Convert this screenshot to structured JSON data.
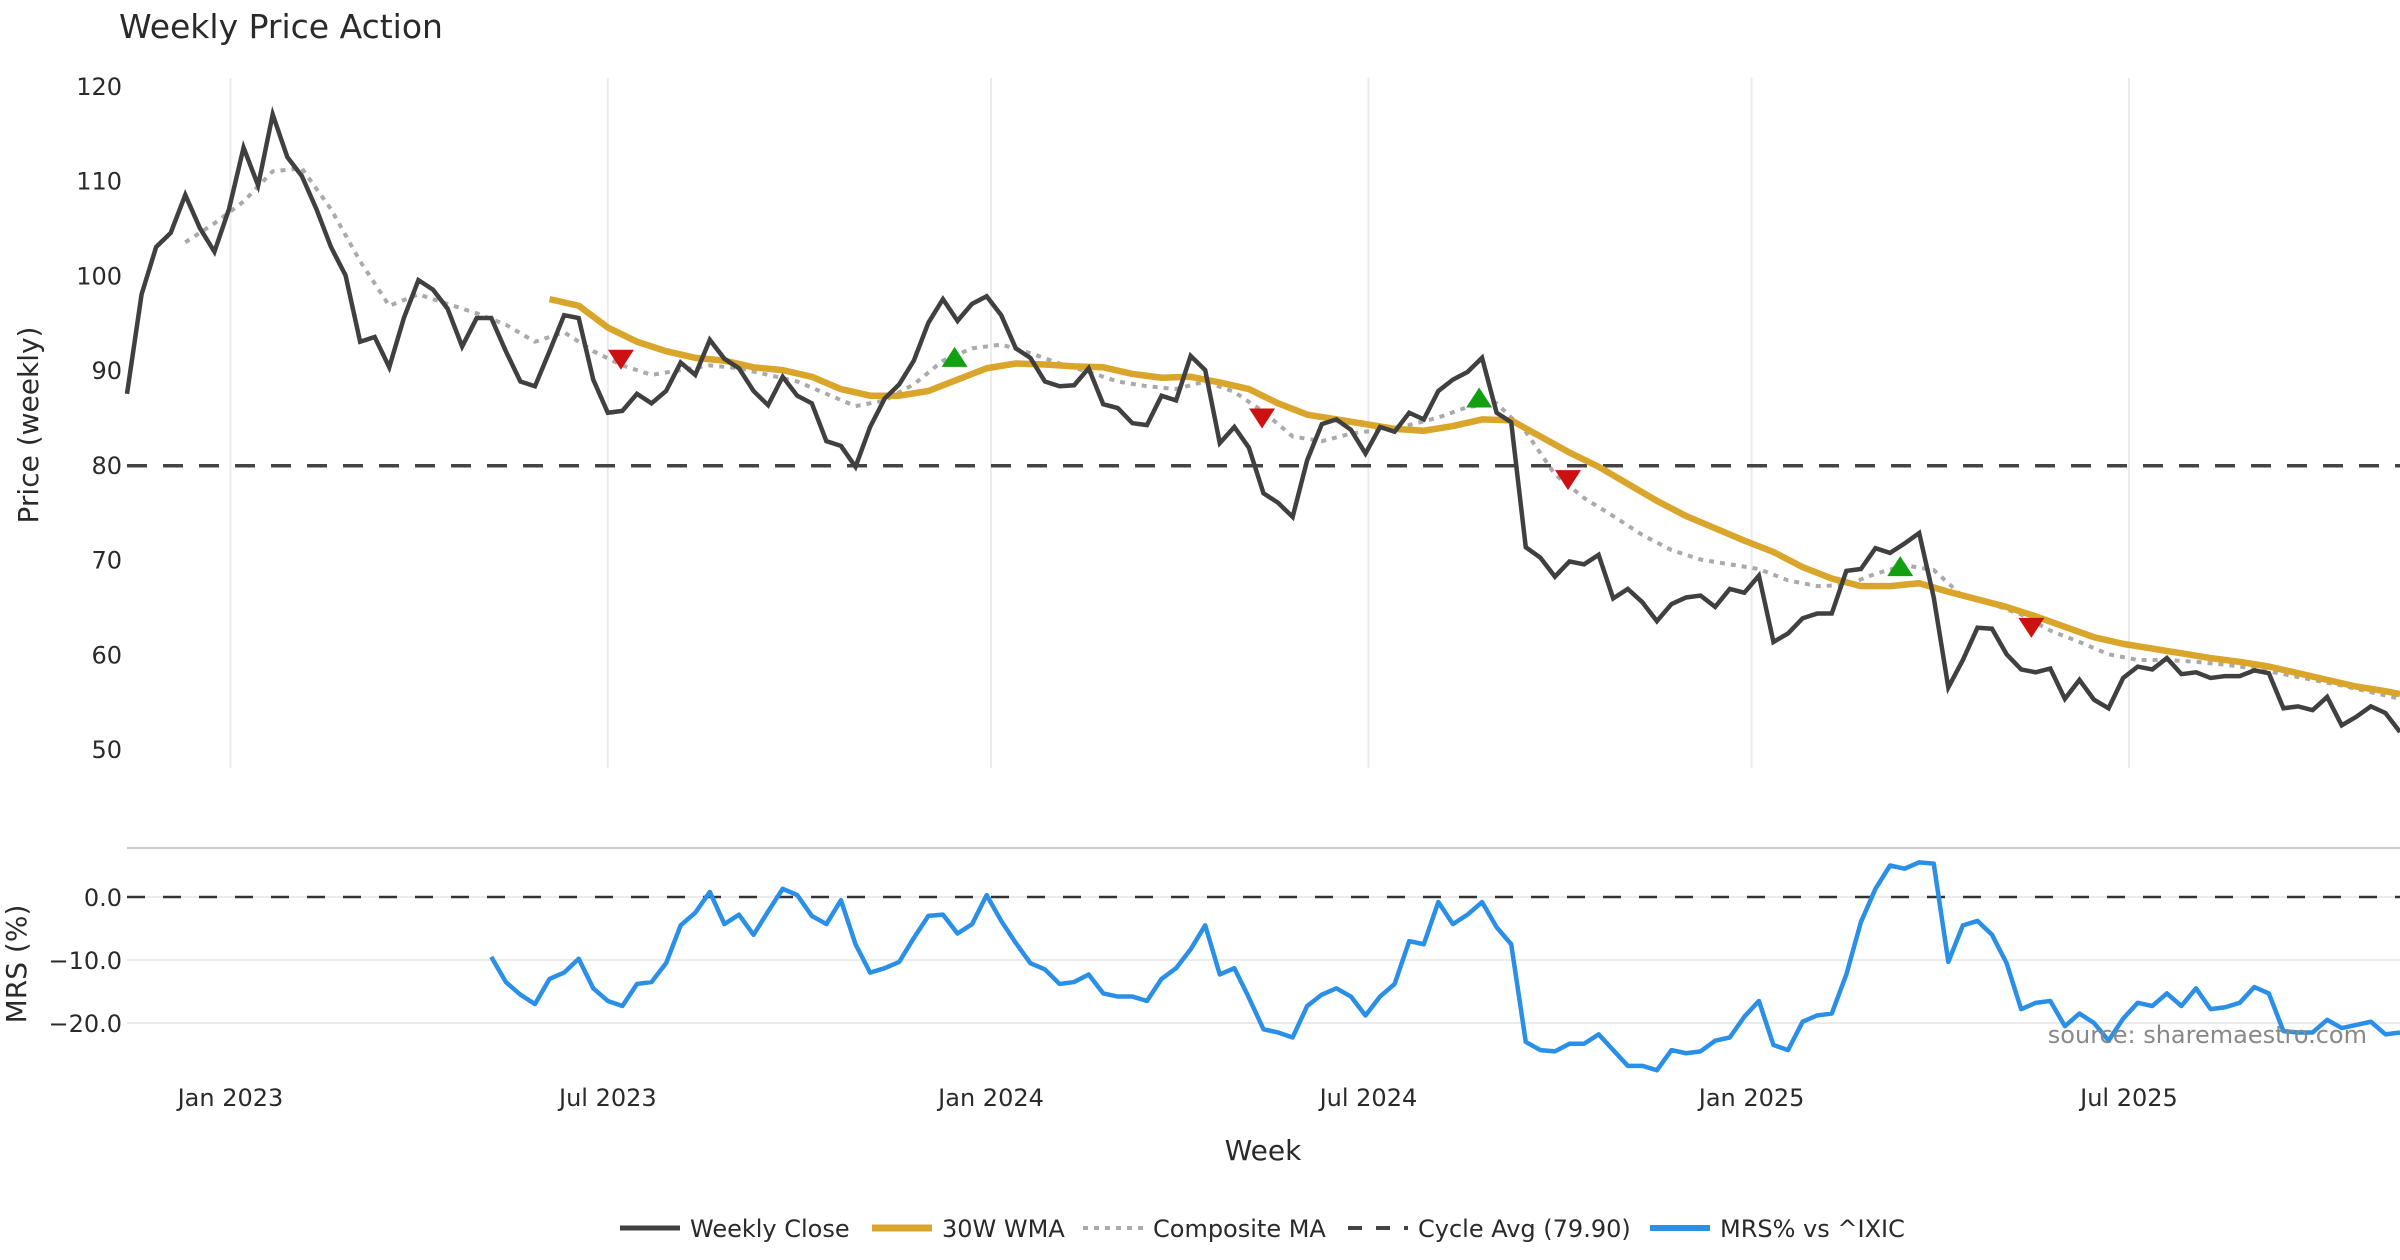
{
  "chart_data": {
    "type": "line",
    "title": "Weekly Price Action",
    "xlabel": "Week",
    "source_note": "source: sharemaestro.com",
    "x_start_week": "2022-11-14",
    "x_tick_labels": [
      {
        "label": "Jan 2023",
        "week_index": 7.1
      },
      {
        "label": "Jul 2023",
        "week_index": 33
      },
      {
        "label": "Jan 2024",
        "week_index": 59.3
      },
      {
        "label": "Jul 2024",
        "week_index": 85.2
      },
      {
        "label": "Jan 2025",
        "week_index": 111.5
      },
      {
        "label": "Jul 2025",
        "week_index": 137.4
      }
    ],
    "x_range": [
      0,
      156
    ],
    "grid": true,
    "legend_position": "bottom-center",
    "colors": {
      "close": "#404040",
      "wma": "#D9A52B",
      "composite": "#AAAAAA",
      "cycle": "#444444",
      "mrs": "#2A8FE6",
      "sell": "#CC1111",
      "buy": "#11A011",
      "grid": "#EBEBEB"
    },
    "price_panel": {
      "ylabel": "Price (weekly)",
      "ylim": [
        48.5,
        121
      ],
      "y_ticks": [
        120,
        110,
        100,
        90,
        80,
        70,
        60,
        50
      ],
      "cycle_avg": 79.9,
      "series": {
        "weekly_close": [
          87.5,
          98,
          103,
          104.5,
          108.5,
          105,
          102.5,
          107,
          113.5,
          109.5,
          117,
          112.5,
          110.5,
          107,
          103,
          100,
          93,
          93.5,
          90.3,
          95.5,
          99.5,
          98.5,
          96.5,
          92.5,
          95.5,
          95.5,
          92,
          88.8,
          88.3,
          92,
          95.8,
          95.5,
          89,
          85.5,
          85.7,
          87.5,
          86.5,
          87.8,
          90.8,
          89.5,
          93.2,
          91.2,
          90.2,
          87.8,
          86.3,
          89.3,
          87.3,
          86.5,
          82.5,
          82,
          79.8,
          84,
          87,
          88.5,
          91,
          95,
          97.5,
          95.2,
          97,
          97.8,
          95.8,
          92.3,
          91.3,
          88.8,
          88.3,
          88.4,
          90.2,
          86.4,
          86,
          84.4,
          84.2,
          87.3,
          86.8,
          91.5,
          90,
          82.3,
          84,
          81.8,
          77,
          76,
          74.5,
          80.5,
          84.3,
          84.8,
          83.7,
          81.2,
          84,
          83.5,
          85.5,
          84.8,
          87.8,
          89,
          89.8,
          91.3,
          85.5,
          84.5,
          71.3,
          70.2,
          68.2,
          69.8,
          69.5,
          70.5,
          65.9,
          66.9,
          65.5,
          63.5,
          65.3,
          66,
          66.2,
          65,
          66.9,
          66.5,
          68.3,
          61.3,
          62.2,
          63.8,
          64.3,
          64.3,
          68.8,
          69,
          71.2,
          70.7,
          71.7,
          72.8,
          66,
          56.5,
          59.4,
          62.8,
          62.7,
          60,
          58.4,
          58.1,
          58.5,
          55.3,
          57.3,
          55.2,
          54.3,
          57.5,
          58.7,
          58.4,
          59.6,
          57.9,
          58.1,
          57.5,
          57.7,
          57.7,
          58.3,
          58,
          54.3,
          54.5,
          54.1,
          55.5,
          52.5,
          53.4,
          54.5,
          53.8,
          51.8
        ],
        "wma_30w": [
          [
            29,
            97.5
          ],
          [
            31,
            96.8
          ],
          [
            33,
            94.5
          ],
          [
            35,
            93
          ],
          [
            37,
            92
          ],
          [
            39,
            91.3
          ],
          [
            41,
            91
          ],
          [
            43,
            90.3
          ],
          [
            45,
            90
          ],
          [
            47,
            89.3
          ],
          [
            49,
            88
          ],
          [
            51,
            87.3
          ],
          [
            53,
            87.3
          ],
          [
            55,
            87.8
          ],
          [
            57,
            89
          ],
          [
            59,
            90.2
          ],
          [
            61,
            90.7
          ],
          [
            63,
            90.6
          ],
          [
            65,
            90.4
          ],
          [
            67,
            90.3
          ],
          [
            69,
            89.6
          ],
          [
            71,
            89.2
          ],
          [
            73,
            89.3
          ],
          [
            75,
            88.7
          ],
          [
            77,
            88
          ],
          [
            79,
            86.5
          ],
          [
            81,
            85.3
          ],
          [
            83,
            84.8
          ],
          [
            85,
            84.3
          ],
          [
            87,
            83.8
          ],
          [
            89,
            83.6
          ],
          [
            91,
            84.1
          ],
          [
            93,
            84.8
          ],
          [
            95,
            84.7
          ],
          [
            97,
            83
          ],
          [
            99,
            81.3
          ],
          [
            101,
            79.8
          ],
          [
            103,
            78
          ],
          [
            105,
            76.2
          ],
          [
            107,
            74.6
          ],
          [
            109,
            73.3
          ],
          [
            111,
            72
          ],
          [
            113,
            70.8
          ],
          [
            115,
            69.2
          ],
          [
            117,
            68
          ],
          [
            119,
            67.2
          ],
          [
            121,
            67.2
          ],
          [
            123,
            67.5
          ],
          [
            125,
            66.6
          ],
          [
            127,
            65.8
          ],
          [
            129,
            65
          ],
          [
            131,
            64
          ],
          [
            133,
            62.9
          ],
          [
            135,
            61.8
          ],
          [
            137,
            61.1
          ],
          [
            139,
            60.6
          ],
          [
            141,
            60.1
          ],
          [
            143,
            59.6
          ],
          [
            145,
            59.2
          ],
          [
            147,
            58.7
          ],
          [
            149,
            58
          ],
          [
            151,
            57.3
          ],
          [
            153,
            56.6
          ],
          [
            155,
            56.1
          ],
          [
            156,
            55.8
          ]
        ],
        "composite_ma": [
          [
            4,
            103.5
          ],
          [
            6,
            105.5
          ],
          [
            8,
            107.8
          ],
          [
            10,
            111
          ],
          [
            12,
            111.3
          ],
          [
            14,
            107
          ],
          [
            16,
            101.5
          ],
          [
            18,
            96.8
          ],
          [
            20,
            98
          ],
          [
            22,
            97
          ],
          [
            24,
            96
          ],
          [
            26,
            94.8
          ],
          [
            28,
            93
          ],
          [
            30,
            94
          ],
          [
            32,
            92
          ],
          [
            34,
            90.5
          ],
          [
            36,
            89.5
          ],
          [
            38,
            90
          ],
          [
            40,
            90.5
          ],
          [
            42,
            90.2
          ],
          [
            44,
            89.5
          ],
          [
            46,
            88.8
          ],
          [
            48,
            87.5
          ],
          [
            50,
            86.2
          ],
          [
            52,
            86.8
          ],
          [
            54,
            88.5
          ],
          [
            56,
            91
          ],
          [
            58,
            92.3
          ],
          [
            60,
            92.7
          ],
          [
            62,
            91.8
          ],
          [
            64,
            90.7
          ],
          [
            66,
            89.8
          ],
          [
            68,
            88.8
          ],
          [
            70,
            88.3
          ],
          [
            72,
            88
          ],
          [
            74,
            88.8
          ],
          [
            76,
            87.7
          ],
          [
            78,
            85.6
          ],
          [
            80,
            83
          ],
          [
            82,
            82.5
          ],
          [
            84,
            83.3
          ],
          [
            86,
            83.7
          ],
          [
            88,
            84.2
          ],
          [
            90,
            85
          ],
          [
            92,
            86.1
          ],
          [
            94,
            86.5
          ],
          [
            96,
            83.5
          ],
          [
            98,
            79
          ],
          [
            100,
            76.5
          ],
          [
            102,
            74.6
          ],
          [
            104,
            72.6
          ],
          [
            106,
            71
          ],
          [
            108,
            70
          ],
          [
            110,
            69.5
          ],
          [
            112,
            69
          ],
          [
            114,
            67.8
          ],
          [
            116,
            67.2
          ],
          [
            118,
            67.3
          ],
          [
            120,
            68.5
          ],
          [
            122,
            69.4
          ],
          [
            124,
            68.9
          ],
          [
            126,
            66.1
          ],
          [
            128,
            65.3
          ],
          [
            130,
            64.2
          ],
          [
            132,
            62.5
          ],
          [
            134,
            61.3
          ],
          [
            136,
            60
          ],
          [
            138,
            59.4
          ],
          [
            140,
            59.4
          ],
          [
            142,
            59.2
          ],
          [
            144,
            58.9
          ],
          [
            146,
            58.5
          ],
          [
            148,
            57.9
          ],
          [
            150,
            57.3
          ],
          [
            152,
            56.7
          ],
          [
            154,
            56
          ],
          [
            156,
            55.3
          ]
        ]
      },
      "signals": [
        {
          "type": "sell",
          "week_index": 33.9,
          "value": 91.2
        },
        {
          "type": "buy",
          "week_index": 56.8,
          "value": 91.3
        },
        {
          "type": "sell",
          "week_index": 77.9,
          "value": 85
        },
        {
          "type": "buy",
          "week_index": 92.8,
          "value": 87
        },
        {
          "type": "sell",
          "week_index": 98.9,
          "value": 78.5
        },
        {
          "type": "buy",
          "week_index": 121.7,
          "value": 69.2
        },
        {
          "type": "sell",
          "week_index": 130.7,
          "value": 62.9
        }
      ]
    },
    "mrs_panel": {
      "ylabel": "MRS (%)",
      "ylim": [
        -29,
        7
      ],
      "y_ticks": [
        0.0,
        -10.0,
        -20.0
      ],
      "y_tick_labels": [
        "0.0",
        "−10.0",
        "−20.0"
      ],
      "zero_line": 0,
      "start_week_index": 25,
      "values": [
        -9.5,
        -13.5,
        -15.5,
        -17,
        -13,
        -12,
        -9.8,
        -14.5,
        -16.5,
        -17.3,
        -13.8,
        -13.5,
        -10.5,
        -4.5,
        -2.5,
        0.8,
        -4.3,
        -2.8,
        -6,
        -2.3,
        1.3,
        0.3,
        -3,
        -4.3,
        -0.5,
        -7.5,
        -12,
        -11.3,
        -10.3,
        -6.5,
        -3,
        -2.8,
        -5.8,
        -4.3,
        0.3,
        -3.8,
        -7.3,
        -10.5,
        -11.5,
        -13.8,
        -13.5,
        -12.3,
        -15.3,
        -15.8,
        -15.8,
        -16.5,
        -13,
        -11.3,
        -8.3,
        -4.5,
        -12.3,
        -11.3,
        -16,
        -21,
        -21.5,
        -22.3,
        -17.3,
        -15.5,
        -14.5,
        -15.8,
        -18.8,
        -15.8,
        -13.8,
        -7,
        -7.5,
        -0.8,
        -4.3,
        -2.8,
        -0.8,
        -4.8,
        -7.5,
        -23,
        -24.3,
        -24.5,
        -23.3,
        -23.3,
        -21.8,
        -24.3,
        -26.8,
        -26.8,
        -27.5,
        -24.3,
        -24.8,
        -24.5,
        -22.8,
        -22.3,
        -19,
        -16.5,
        -23.5,
        -24.3,
        -19.8,
        -18.8,
        -18.5,
        -12.3,
        -4,
        1.3,
        5,
        4.5,
        5.5,
        5.3,
        -10.3,
        -4.5,
        -3.8,
        -6,
        -10.5,
        -17.8,
        -16.8,
        -16.5,
        -20.5,
        -18.5,
        -20,
        -22.8,
        -19.3,
        -16.8,
        -17.3,
        -15.3,
        -17.3,
        -14.5,
        -17.8,
        -17.5,
        -16.8,
        -14.3,
        -15.3,
        -21.3,
        -21.5,
        -21.5,
        -19.5,
        -20.8,
        -20.3,
        -19.8,
        -21.8,
        -21.5
      ]
    },
    "legend": [
      {
        "key": "close",
        "label": "Weekly Close",
        "style": "solid"
      },
      {
        "key": "wma",
        "label": "30W WMA",
        "style": "solid-thick"
      },
      {
        "key": "composite",
        "label": "Composite MA",
        "style": "dotted"
      },
      {
        "key": "cycle",
        "label": "Cycle Avg (79.90)",
        "style": "dashed"
      },
      {
        "key": "mrs",
        "label": "MRS% vs ^IXIC",
        "style": "solid"
      }
    ]
  }
}
